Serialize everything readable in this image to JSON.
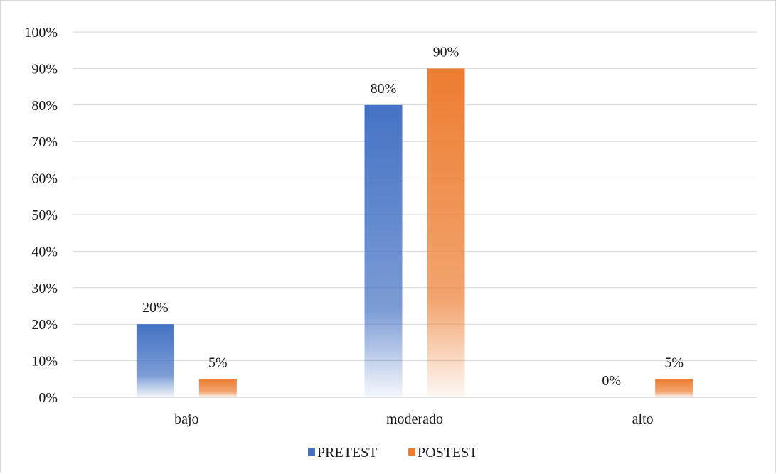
{
  "chart_data": {
    "type": "bar",
    "categories": [
      "bajo",
      "moderado",
      "alto"
    ],
    "series": [
      {
        "name": "PRETEST",
        "values": [
          20,
          80,
          0
        ],
        "labels": [
          "20%",
          "80%",
          "0%"
        ],
        "color": "#4472c4"
      },
      {
        "name": "POSTEST",
        "values": [
          5,
          90,
          5
        ],
        "labels": [
          "5%",
          "90%",
          "5%"
        ],
        "color": "#ed7d31"
      }
    ],
    "ylim": [
      0,
      100
    ],
    "yticks": [
      "0%",
      "10%",
      "20%",
      "30%",
      "40%",
      "50%",
      "60%",
      "70%",
      "80%",
      "90%",
      "100%"
    ],
    "grid": true,
    "legend": "bottom-center",
    "title": "",
    "xlabel": "",
    "ylabel": ""
  }
}
